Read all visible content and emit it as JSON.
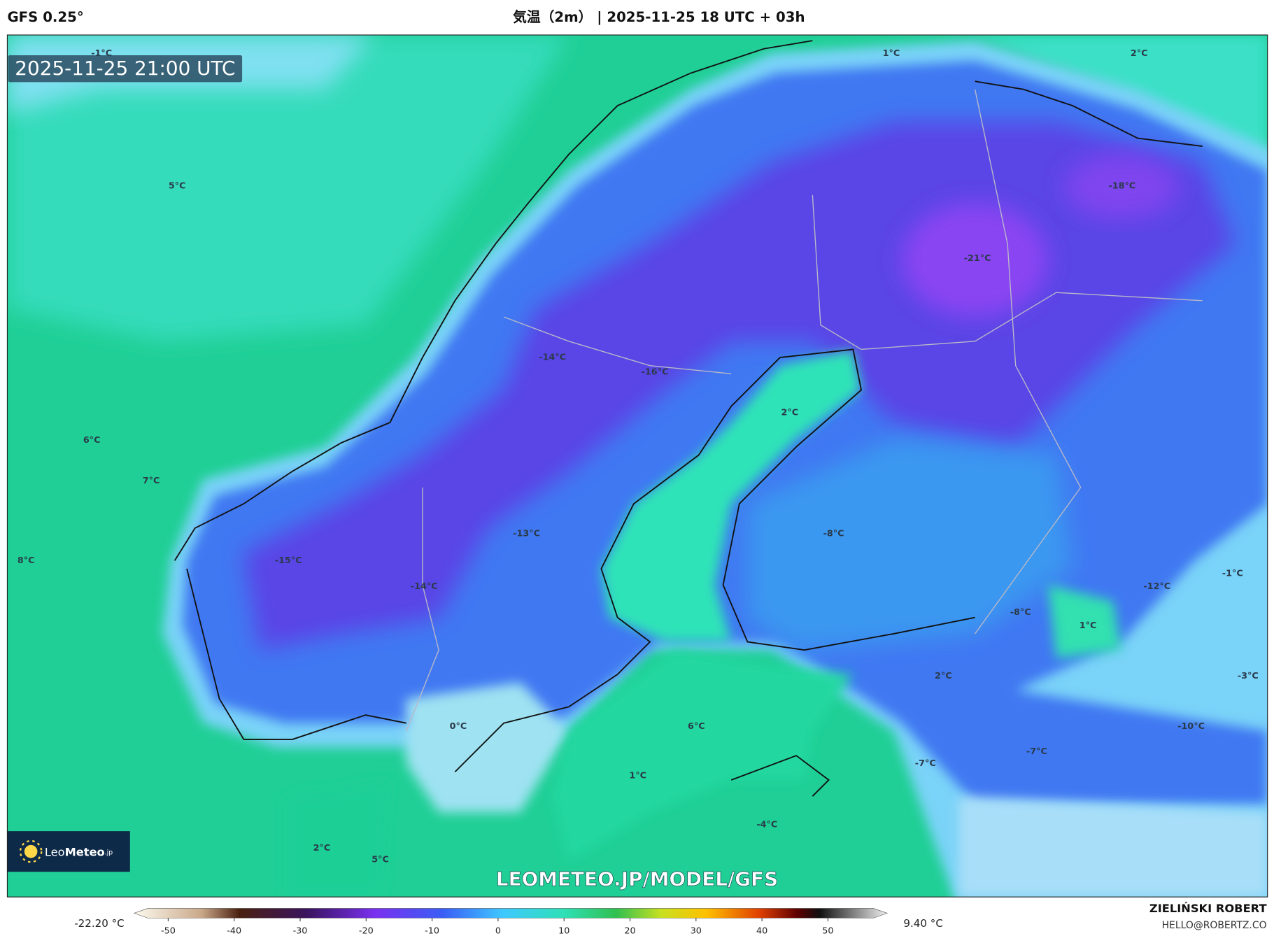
{
  "header": {
    "model": "GFS 0.25°",
    "title": "気温（2m） | 2025-11-25 18 UTC + 03h"
  },
  "map": {
    "timestamp": "2025-11-25 21:00 UTC",
    "labels": [
      "-1°C",
      "1°C",
      "2°C",
      "5°C",
      "-18°C",
      "-21°C",
      "-14°C",
      "-16°C",
      "2°C",
      "6°C",
      "7°C",
      "-13°C",
      "-8°C",
      "8°C",
      "-15°C",
      "-14°C",
      "-1°C",
      "-12°C",
      "-8°C",
      "1°C",
      "-3°C",
      "2°C",
      "0°C",
      "6°C",
      "-10°C",
      "-7°C",
      "-7°C",
      "1°C",
      "-4°C",
      "2°C",
      "5°C"
    ],
    "watermark": "LEOMETEO.JP/MODEL/GFS",
    "logo": {
      "light": "Leo",
      "bold": "Meteo",
      "suffix": ".jp"
    }
  },
  "colorbar": {
    "min_label": "-22.20 °C",
    "max_label": "9.40 °C",
    "ticks": [
      -50,
      -40,
      -30,
      -20,
      -10,
      0,
      10,
      20,
      30,
      40,
      50
    ]
  },
  "footer": {
    "author": "ZIELIŃSKI ROBERT",
    "email": "HELLO@ROBERTZ.CO"
  }
}
